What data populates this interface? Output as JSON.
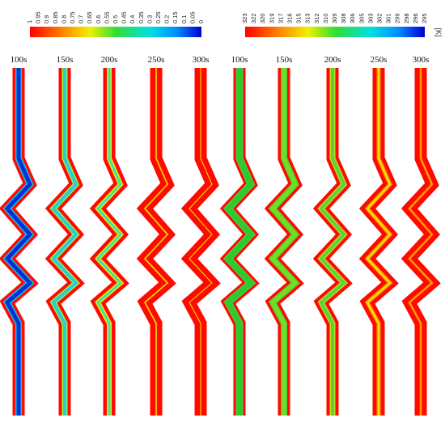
{
  "figure": {
    "colorbar_fraction": {
      "ticks": [
        "1",
        "0.95",
        "0.9",
        "0.85",
        "0.8",
        "0.75",
        "0.7",
        "0.65",
        "0.6",
        "0.55",
        "0.5",
        "0.45",
        "0.4",
        "0.35",
        "0.3",
        "0.25",
        "0.2",
        "0.15",
        "0.1",
        "0.05",
        "0"
      ],
      "colors": [
        "#ff0000",
        "#0000d0"
      ]
    },
    "colorbar_temperature": {
      "ticks": [
        "323",
        "322",
        "320",
        "319",
        "317",
        "316",
        "315",
        "313",
        "312",
        "310",
        "309",
        "308",
        "306",
        "305",
        "303",
        "302",
        "301",
        "299",
        "298",
        "296",
        "295"
      ],
      "unit": "[K]"
    },
    "fraction_panels": [
      {
        "label": "100s",
        "level": 0.0
      },
      {
        "label": "150s",
        "level": 0.2
      },
      {
        "label": "200s",
        "level": 0.45
      },
      {
        "label": "250s",
        "level": 0.75
      },
      {
        "label": "300s",
        "level": 0.95
      }
    ],
    "temperature_panels": [
      {
        "label": "100s",
        "level": 0.0
      },
      {
        "label": "150s",
        "level": 0.1
      },
      {
        "label": "200s",
        "level": 0.35
      },
      {
        "label": "250s",
        "level": 0.7
      },
      {
        "label": "300s",
        "level": 0.9
      }
    ]
  }
}
